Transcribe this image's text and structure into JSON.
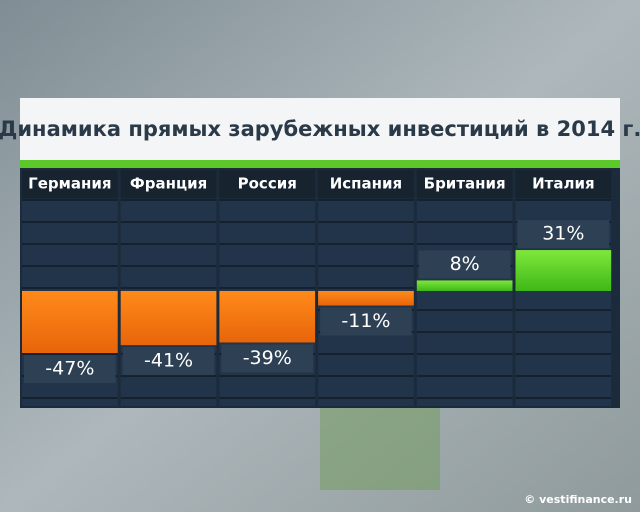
{
  "chart_data": {
    "type": "bar",
    "title": "Динамика прямых зарубежных инвестиций в 2014 г.",
    "categories": [
      "Германия",
      "Франция",
      "Россия",
      "Испания",
      "Британия",
      "Италия"
    ],
    "values": [
      -47,
      -41,
      -39,
      -11,
      8,
      31
    ],
    "value_labels": [
      "-47%",
      "-41%",
      "-39%",
      "-11%",
      "8%",
      "31%"
    ],
    "negative_color": "#f47b12",
    "positive_color": "#56d024"
  },
  "watermark": "© vestifinance.ru"
}
